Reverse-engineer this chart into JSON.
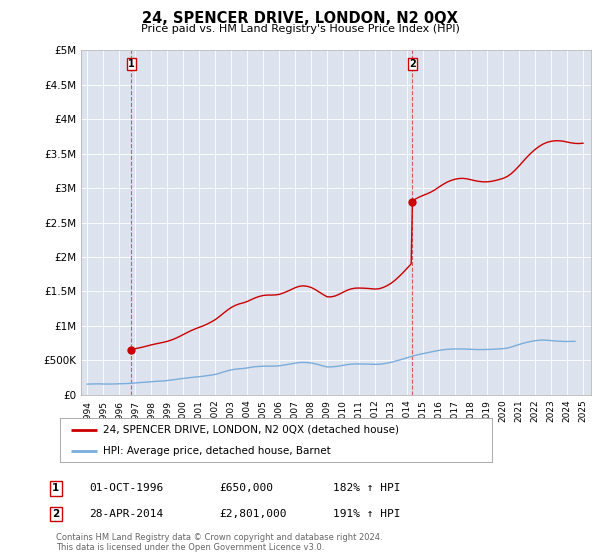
{
  "title": "24, SPENCER DRIVE, LONDON, N2 0QX",
  "subtitle": "Price paid vs. HM Land Registry's House Price Index (HPI)",
  "hpi_label": "HPI: Average price, detached house, Barnet",
  "property_label": "24, SPENCER DRIVE, LONDON, N2 0QX (detached house)",
  "sale1_date": "01-OCT-1996",
  "sale1_price": 650000,
  "sale1_hpi": "182% ↑ HPI",
  "sale2_date": "28-APR-2014",
  "sale2_price": 2801000,
  "sale2_hpi": "191% ↑ HPI",
  "footnote1": "Contains HM Land Registry data © Crown copyright and database right 2024.",
  "footnote2": "This data is licensed under the Open Government Licence v3.0.",
  "property_color": "#cc0000",
  "hpi_color": "#7aaddb",
  "ylim": [
    0,
    5000000
  ],
  "yticks": [
    0,
    500000,
    1000000,
    1500000,
    2000000,
    2500000,
    3000000,
    3500000,
    4000000,
    4500000,
    5000000
  ],
  "ytick_labels": [
    "£0",
    "£500K",
    "£1M",
    "£1.5M",
    "£2M",
    "£2.5M",
    "£3M",
    "£3.5M",
    "£4M",
    "£4.5M",
    "£5M"
  ],
  "xtick_years": [
    1994,
    1995,
    1996,
    1997,
    1998,
    1999,
    2000,
    2001,
    2002,
    2003,
    2004,
    2005,
    2006,
    2007,
    2008,
    2009,
    2010,
    2011,
    2012,
    2013,
    2014,
    2015,
    2016,
    2017,
    2018,
    2019,
    2020,
    2021,
    2022,
    2023,
    2024,
    2025
  ],
  "background_color": "#dde3ee",
  "sale1_x": 1996.75,
  "sale2_x": 2014.33,
  "hpi_data": [
    [
      1994.0,
      155000
    ],
    [
      1994.25,
      157000
    ],
    [
      1994.5,
      158000
    ],
    [
      1994.75,
      159000
    ],
    [
      1995.0,
      157000
    ],
    [
      1995.25,
      156000
    ],
    [
      1995.5,
      157000
    ],
    [
      1995.75,
      158000
    ],
    [
      1996.0,
      160000
    ],
    [
      1996.25,
      162000
    ],
    [
      1996.5,
      164000
    ],
    [
      1996.75,
      167000
    ],
    [
      1997.0,
      172000
    ],
    [
      1997.25,
      177000
    ],
    [
      1997.5,
      181000
    ],
    [
      1997.75,
      185000
    ],
    [
      1998.0,
      190000
    ],
    [
      1998.25,
      195000
    ],
    [
      1998.5,
      198000
    ],
    [
      1998.75,
      201000
    ],
    [
      1999.0,
      207000
    ],
    [
      1999.25,
      215000
    ],
    [
      1999.5,
      222000
    ],
    [
      1999.75,
      230000
    ],
    [
      2000.0,
      238000
    ],
    [
      2000.25,
      245000
    ],
    [
      2000.5,
      252000
    ],
    [
      2000.75,
      258000
    ],
    [
      2001.0,
      263000
    ],
    [
      2001.25,
      270000
    ],
    [
      2001.5,
      278000
    ],
    [
      2001.75,
      286000
    ],
    [
      2002.0,
      296000
    ],
    [
      2002.25,
      312000
    ],
    [
      2002.5,
      330000
    ],
    [
      2002.75,
      348000
    ],
    [
      2003.0,
      362000
    ],
    [
      2003.25,
      372000
    ],
    [
      2003.5,
      378000
    ],
    [
      2003.75,
      382000
    ],
    [
      2004.0,
      390000
    ],
    [
      2004.25,
      400000
    ],
    [
      2004.5,
      408000
    ],
    [
      2004.75,
      412000
    ],
    [
      2005.0,
      415000
    ],
    [
      2005.25,
      416000
    ],
    [
      2005.5,
      416000
    ],
    [
      2005.75,
      417000
    ],
    [
      2006.0,
      421000
    ],
    [
      2006.25,
      430000
    ],
    [
      2006.5,
      440000
    ],
    [
      2006.75,
      450000
    ],
    [
      2007.0,
      460000
    ],
    [
      2007.25,
      468000
    ],
    [
      2007.5,
      470000
    ],
    [
      2007.75,
      468000
    ],
    [
      2008.0,
      462000
    ],
    [
      2008.25,
      450000
    ],
    [
      2008.5,
      435000
    ],
    [
      2008.75,
      418000
    ],
    [
      2009.0,
      405000
    ],
    [
      2009.25,
      405000
    ],
    [
      2009.5,
      410000
    ],
    [
      2009.75,
      418000
    ],
    [
      2010.0,
      428000
    ],
    [
      2010.25,
      438000
    ],
    [
      2010.5,
      445000
    ],
    [
      2010.75,
      448000
    ],
    [
      2011.0,
      448000
    ],
    [
      2011.25,
      447000
    ],
    [
      2011.5,
      446000
    ],
    [
      2011.75,
      444000
    ],
    [
      2012.0,
      442000
    ],
    [
      2012.25,
      444000
    ],
    [
      2012.5,
      450000
    ],
    [
      2012.75,
      460000
    ],
    [
      2013.0,
      472000
    ],
    [
      2013.25,
      488000
    ],
    [
      2013.5,
      504000
    ],
    [
      2013.75,
      520000
    ],
    [
      2014.0,
      538000
    ],
    [
      2014.25,
      555000
    ],
    [
      2014.5,
      572000
    ],
    [
      2014.75,
      586000
    ],
    [
      2015.0,
      598000
    ],
    [
      2015.25,
      610000
    ],
    [
      2015.5,
      622000
    ],
    [
      2015.75,
      634000
    ],
    [
      2016.0,
      645000
    ],
    [
      2016.25,
      654000
    ],
    [
      2016.5,
      660000
    ],
    [
      2016.75,
      663000
    ],
    [
      2017.0,
      665000
    ],
    [
      2017.25,
      666000
    ],
    [
      2017.5,
      665000
    ],
    [
      2017.75,
      663000
    ],
    [
      2018.0,
      660000
    ],
    [
      2018.25,
      658000
    ],
    [
      2018.5,
      657000
    ],
    [
      2018.75,
      657000
    ],
    [
      2019.0,
      658000
    ],
    [
      2019.25,
      660000
    ],
    [
      2019.5,
      663000
    ],
    [
      2019.75,
      666000
    ],
    [
      2020.0,
      670000
    ],
    [
      2020.25,
      678000
    ],
    [
      2020.5,
      692000
    ],
    [
      2020.75,
      712000
    ],
    [
      2021.0,
      730000
    ],
    [
      2021.25,
      748000
    ],
    [
      2021.5,
      763000
    ],
    [
      2021.75,
      775000
    ],
    [
      2022.0,
      785000
    ],
    [
      2022.25,
      792000
    ],
    [
      2022.5,
      795000
    ],
    [
      2022.75,
      792000
    ],
    [
      2023.0,
      787000
    ],
    [
      2023.25,
      782000
    ],
    [
      2023.5,
      778000
    ],
    [
      2023.75,
      775000
    ],
    [
      2024.0,
      774000
    ],
    [
      2024.25,
      775000
    ],
    [
      2024.5,
      776000
    ]
  ],
  "property_data": [
    [
      1996.75,
      650000
    ],
    [
      1997.0,
      670000
    ],
    [
      1997.25,
      682000
    ],
    [
      1997.5,
      695000
    ],
    [
      1997.75,
      710000
    ],
    [
      1998.0,
      725000
    ],
    [
      1998.25,
      738000
    ],
    [
      1998.5,
      750000
    ],
    [
      1998.75,
      762000
    ],
    [
      1999.0,
      776000
    ],
    [
      1999.25,
      795000
    ],
    [
      1999.5,
      818000
    ],
    [
      1999.75,
      845000
    ],
    [
      2000.0,
      875000
    ],
    [
      2000.25,
      905000
    ],
    [
      2000.5,
      933000
    ],
    [
      2000.75,
      958000
    ],
    [
      2001.0,
      980000
    ],
    [
      2001.25,
      1002000
    ],
    [
      2001.5,
      1028000
    ],
    [
      2001.75,
      1058000
    ],
    [
      2002.0,
      1092000
    ],
    [
      2002.25,
      1135000
    ],
    [
      2002.5,
      1182000
    ],
    [
      2002.75,
      1228000
    ],
    [
      2003.0,
      1268000
    ],
    [
      2003.25,
      1298000
    ],
    [
      2003.5,
      1320000
    ],
    [
      2003.75,
      1335000
    ],
    [
      2004.0,
      1355000
    ],
    [
      2004.25,
      1382000
    ],
    [
      2004.5,
      1408000
    ],
    [
      2004.75,
      1428000
    ],
    [
      2005.0,
      1442000
    ],
    [
      2005.25,
      1448000
    ],
    [
      2005.5,
      1448000
    ],
    [
      2005.75,
      1450000
    ],
    [
      2006.0,
      1458000
    ],
    [
      2006.25,
      1478000
    ],
    [
      2006.5,
      1502000
    ],
    [
      2006.75,
      1528000
    ],
    [
      2007.0,
      1555000
    ],
    [
      2007.25,
      1575000
    ],
    [
      2007.5,
      1582000
    ],
    [
      2007.75,
      1575000
    ],
    [
      2008.0,
      1558000
    ],
    [
      2008.25,
      1528000
    ],
    [
      2008.5,
      1492000
    ],
    [
      2008.75,
      1455000
    ],
    [
      2009.0,
      1422000
    ],
    [
      2009.25,
      1422000
    ],
    [
      2009.5,
      1435000
    ],
    [
      2009.75,
      1460000
    ],
    [
      2010.0,
      1490000
    ],
    [
      2010.25,
      1518000
    ],
    [
      2010.5,
      1538000
    ],
    [
      2010.75,
      1548000
    ],
    [
      2011.0,
      1550000
    ],
    [
      2011.25,
      1548000
    ],
    [
      2011.5,
      1545000
    ],
    [
      2011.75,
      1540000
    ],
    [
      2012.0,
      1535000
    ],
    [
      2012.25,
      1540000
    ],
    [
      2012.5,
      1558000
    ],
    [
      2012.75,
      1585000
    ],
    [
      2013.0,
      1620000
    ],
    [
      2013.25,
      1665000
    ],
    [
      2013.5,
      1718000
    ],
    [
      2013.75,
      1775000
    ],
    [
      2014.0,
      1838000
    ],
    [
      2014.25,
      1900000
    ],
    [
      2014.33,
      2801000
    ],
    [
      2014.5,
      2840000
    ],
    [
      2014.75,
      2870000
    ],
    [
      2015.0,
      2895000
    ],
    [
      2015.25,
      2918000
    ],
    [
      2015.5,
      2945000
    ],
    [
      2015.75,
      2978000
    ],
    [
      2016.0,
      3018000
    ],
    [
      2016.25,
      3055000
    ],
    [
      2016.5,
      3088000
    ],
    [
      2016.75,
      3112000
    ],
    [
      2017.0,
      3130000
    ],
    [
      2017.25,
      3140000
    ],
    [
      2017.5,
      3142000
    ],
    [
      2017.75,
      3135000
    ],
    [
      2018.0,
      3122000
    ],
    [
      2018.25,
      3108000
    ],
    [
      2018.5,
      3098000
    ],
    [
      2018.75,
      3092000
    ],
    [
      2019.0,
      3092000
    ],
    [
      2019.25,
      3098000
    ],
    [
      2019.5,
      3110000
    ],
    [
      2019.75,
      3125000
    ],
    [
      2020.0,
      3142000
    ],
    [
      2020.25,
      3168000
    ],
    [
      2020.5,
      3208000
    ],
    [
      2020.75,
      3262000
    ],
    [
      2021.0,
      3322000
    ],
    [
      2021.25,
      3388000
    ],
    [
      2021.5,
      3452000
    ],
    [
      2021.75,
      3510000
    ],
    [
      2022.0,
      3562000
    ],
    [
      2022.25,
      3605000
    ],
    [
      2022.5,
      3640000
    ],
    [
      2022.75,
      3665000
    ],
    [
      2023.0,
      3680000
    ],
    [
      2023.25,
      3688000
    ],
    [
      2023.5,
      3688000
    ],
    [
      2023.75,
      3682000
    ],
    [
      2024.0,
      3670000
    ],
    [
      2024.25,
      3658000
    ],
    [
      2024.5,
      3650000
    ],
    [
      2024.75,
      3648000
    ],
    [
      2025.0,
      3652000
    ]
  ]
}
